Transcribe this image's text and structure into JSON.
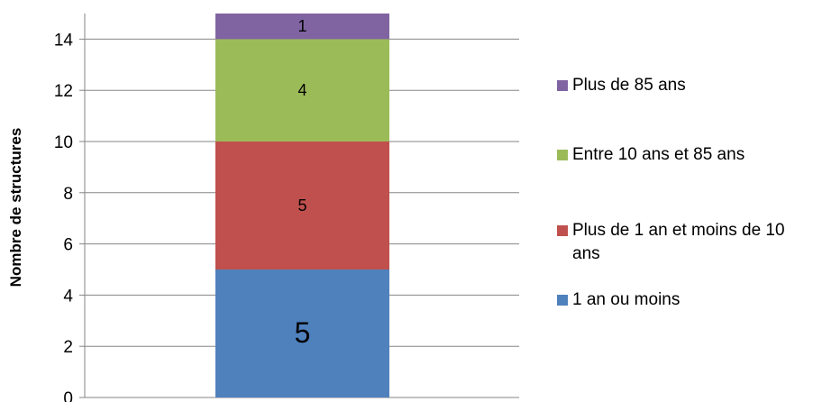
{
  "chart_data": {
    "type": "bar",
    "stacked": true,
    "categories": [
      ""
    ],
    "ylabel": "Nombre de structures",
    "ylim": [
      0,
      15
    ],
    "yticks": [
      0,
      2,
      4,
      6,
      8,
      10,
      12,
      14
    ],
    "grid": true,
    "legend_position": "right",
    "series": [
      {
        "name": "1 an ou moins",
        "values": [
          5
        ],
        "color": "#4F81BD",
        "label": "5"
      },
      {
        "name": "Plus de 1 an et moins de 10 ans",
        "values": [
          5
        ],
        "color": "#C0504D",
        "label": "5"
      },
      {
        "name": "Entre 10 ans et 85 ans",
        "values": [
          4
        ],
        "color": "#9BBB59",
        "label": "4"
      },
      {
        "name": "Plus de 85 ans",
        "values": [
          1
        ],
        "color": "#8064A2",
        "label": "1"
      }
    ]
  },
  "legend": {
    "items": [
      {
        "text": "Plus de 85 ans",
        "color": "#8064A2"
      },
      {
        "text": "Entre 10 ans et 85 ans",
        "color": "#9BBB59"
      },
      {
        "text": "Plus de 1 an et moins de 10 ans",
        "color": "#C0504D"
      },
      {
        "text": "1 an ou moins",
        "color": "#4F81BD"
      }
    ]
  }
}
